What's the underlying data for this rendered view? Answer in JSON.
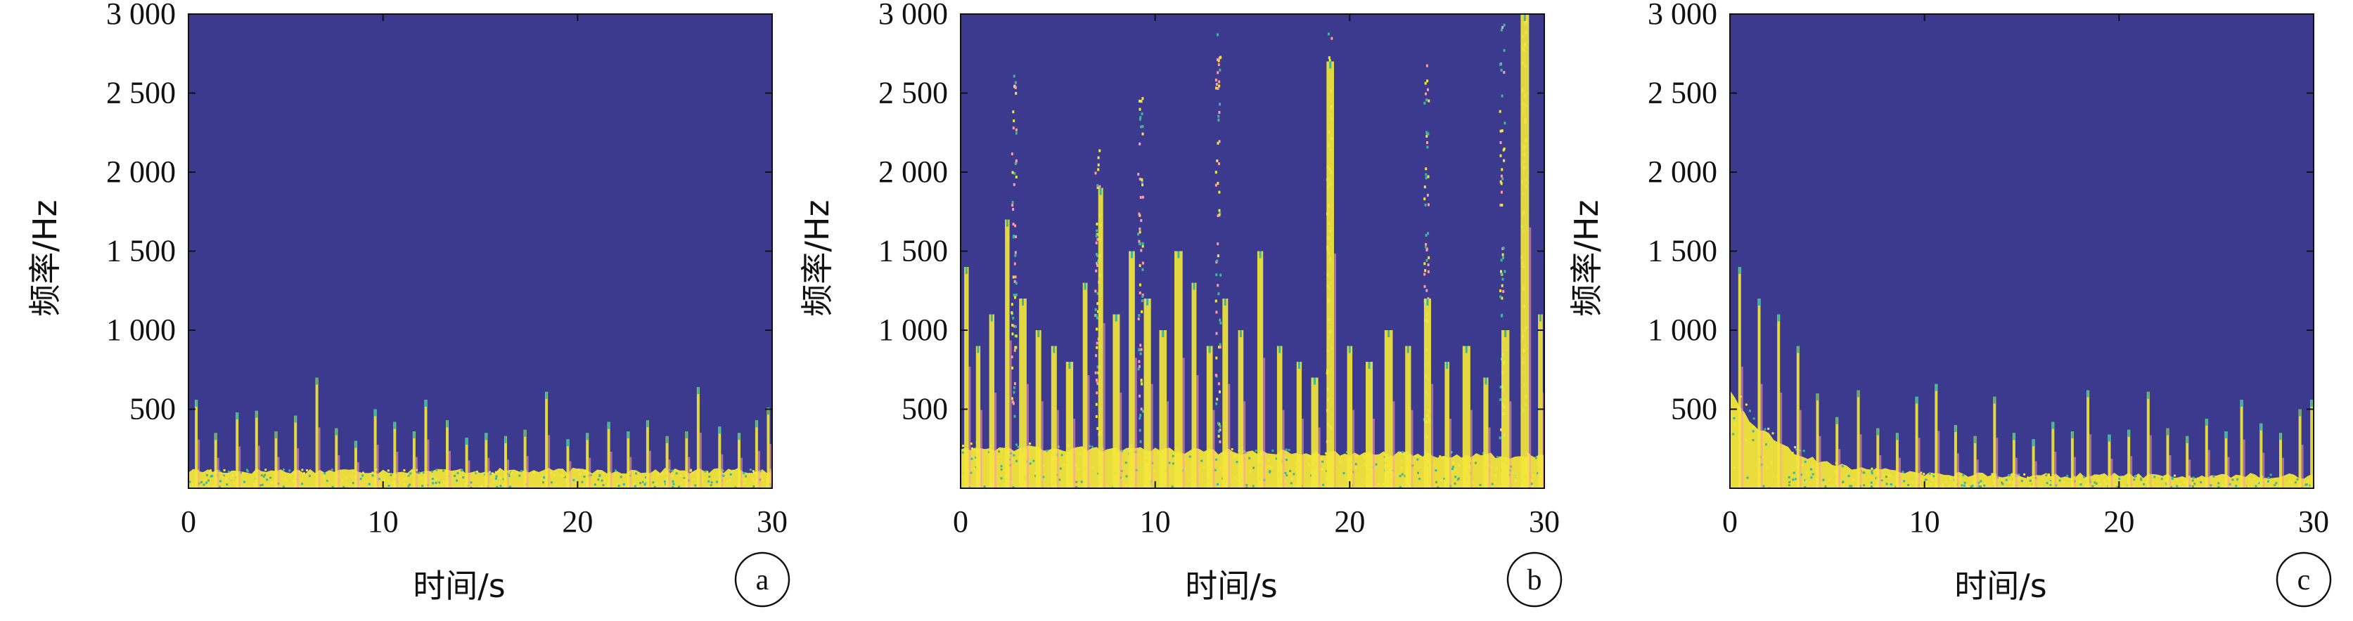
{
  "colors": {
    "background_power": "#3b3a8e",
    "high_power": "#f2e63a",
    "mid_power": "#3fb59a",
    "peak_power": "#ff9aa8"
  },
  "chart_data": [
    {
      "type": "heatmap",
      "panel_label": "a",
      "xlabel": "时间/s",
      "ylabel": "频率/Hz",
      "xlim": [
        0,
        30
      ],
      "ylim": [
        0,
        3000
      ],
      "x_ticks": [
        "0",
        "10",
        "20",
        "30"
      ],
      "y_ticks": [
        "500",
        "1 000",
        "1 500",
        "2 000",
        "2 500",
        "3 000"
      ],
      "band": {
        "base_top_hz": 110,
        "start_top_hz": 110,
        "decay_s": 0
      },
      "spikes": [
        {
          "t": 0.4,
          "f": 560
        },
        {
          "t": 1.4,
          "f": 350
        },
        {
          "t": 2.5,
          "f": 480
        },
        {
          "t": 3.5,
          "f": 490
        },
        {
          "t": 4.5,
          "f": 360
        },
        {
          "t": 5.5,
          "f": 460
        },
        {
          "t": 6.6,
          "f": 700
        },
        {
          "t": 7.6,
          "f": 380
        },
        {
          "t": 8.6,
          "f": 300
        },
        {
          "t": 9.6,
          "f": 500
        },
        {
          "t": 10.6,
          "f": 420
        },
        {
          "t": 11.6,
          "f": 360
        },
        {
          "t": 12.2,
          "f": 560
        },
        {
          "t": 13.3,
          "f": 430
        },
        {
          "t": 14.3,
          "f": 320
        },
        {
          "t": 15.3,
          "f": 350
        },
        {
          "t": 16.3,
          "f": 330
        },
        {
          "t": 17.3,
          "f": 370
        },
        {
          "t": 18.4,
          "f": 610
        },
        {
          "t": 19.5,
          "f": 310
        },
        {
          "t": 20.5,
          "f": 350
        },
        {
          "t": 21.6,
          "f": 420
        },
        {
          "t": 22.6,
          "f": 360
        },
        {
          "t": 23.6,
          "f": 430
        },
        {
          "t": 24.6,
          "f": 330
        },
        {
          "t": 25.6,
          "f": 360
        },
        {
          "t": 26.2,
          "f": 640
        },
        {
          "t": 27.3,
          "f": 390
        },
        {
          "t": 28.3,
          "f": 350
        },
        {
          "t": 29.2,
          "f": 430
        },
        {
          "t": 29.8,
          "f": 510
        }
      ],
      "scatter_streaks": []
    },
    {
      "type": "heatmap",
      "panel_label": "b",
      "xlabel": "时间/s",
      "ylabel": "频率/Hz",
      "xlim": [
        0,
        30
      ],
      "ylim": [
        0,
        3000
      ],
      "x_ticks": [
        "0",
        "10",
        "20",
        "30"
      ],
      "y_ticks": [
        "500",
        "1 000",
        "1 500",
        "2 000",
        "2 500",
        "3 000"
      ],
      "band": {
        "base_top_hz": 200,
        "start_top_hz": 300,
        "decay_s": 0
      },
      "spikes": [
        {
          "t": 0.3,
          "f": 1400
        },
        {
          "t": 0.9,
          "f": 900
        },
        {
          "t": 1.6,
          "f": 1100
        },
        {
          "t": 2.4,
          "f": 1700
        },
        {
          "t": 3.2,
          "f": 1200
        },
        {
          "t": 4.0,
          "f": 1000
        },
        {
          "t": 4.8,
          "f": 900
        },
        {
          "t": 5.6,
          "f": 800
        },
        {
          "t": 6.4,
          "f": 1300
        },
        {
          "t": 7.2,
          "f": 1900
        },
        {
          "t": 8.0,
          "f": 1100
        },
        {
          "t": 8.8,
          "f": 1500
        },
        {
          "t": 9.6,
          "f": 1200
        },
        {
          "t": 10.4,
          "f": 1000
        },
        {
          "t": 11.2,
          "f": 1500
        },
        {
          "t": 12.0,
          "f": 1300
        },
        {
          "t": 12.8,
          "f": 900
        },
        {
          "t": 13.6,
          "f": 1200
        },
        {
          "t": 14.4,
          "f": 1000
        },
        {
          "t": 15.4,
          "f": 1500
        },
        {
          "t": 16.4,
          "f": 900
        },
        {
          "t": 17.4,
          "f": 800
        },
        {
          "t": 18.2,
          "f": 700
        },
        {
          "t": 19.0,
          "f": 2700
        },
        {
          "t": 20.0,
          "f": 900
        },
        {
          "t": 21.0,
          "f": 800
        },
        {
          "t": 22.0,
          "f": 1000
        },
        {
          "t": 23.0,
          "f": 900
        },
        {
          "t": 24.0,
          "f": 1200
        },
        {
          "t": 25.0,
          "f": 800
        },
        {
          "t": 26.0,
          "f": 900
        },
        {
          "t": 27.0,
          "f": 700
        },
        {
          "t": 28.0,
          "f": 1000
        },
        {
          "t": 29.0,
          "f": 3000
        },
        {
          "t": 29.8,
          "f": 1100
        }
      ],
      "scatter_streaks": [
        {
          "t": 2.7,
          "f_min": 400,
          "f_max": 2650
        },
        {
          "t": 7.0,
          "f_min": 300,
          "f_max": 2200
        },
        {
          "t": 9.2,
          "f_min": 300,
          "f_max": 2500
        },
        {
          "t": 13.2,
          "f_min": 300,
          "f_max": 2900
        },
        {
          "t": 18.9,
          "f_min": 300,
          "f_max": 3000
        },
        {
          "t": 23.9,
          "f_min": 300,
          "f_max": 2700
        },
        {
          "t": 27.8,
          "f_min": 300,
          "f_max": 3000
        },
        {
          "t": 28.9,
          "f_min": 500,
          "f_max": 3000
        }
      ]
    },
    {
      "type": "heatmap",
      "panel_label": "c",
      "xlabel": "时间/s",
      "ylabel": "频率/Hz",
      "xlim": [
        0,
        30
      ],
      "ylim": [
        0,
        3000
      ],
      "x_ticks": [
        "0",
        "10",
        "20",
        "30"
      ],
      "y_ticks": [
        "500",
        "1 000",
        "1 500",
        "2 000",
        "2 500",
        "3 000"
      ],
      "band": {
        "base_top_hz": 80,
        "start_top_hz": 600,
        "decay_s": 6
      },
      "spikes": [
        {
          "t": 0.5,
          "f": 1400
        },
        {
          "t": 1.5,
          "f": 1200
        },
        {
          "t": 2.5,
          "f": 1100
        },
        {
          "t": 3.5,
          "f": 900
        },
        {
          "t": 4.5,
          "f": 600
        },
        {
          "t": 5.5,
          "f": 450
        },
        {
          "t": 6.6,
          "f": 620
        },
        {
          "t": 7.6,
          "f": 380
        },
        {
          "t": 8.6,
          "f": 350
        },
        {
          "t": 9.6,
          "f": 580
        },
        {
          "t": 10.6,
          "f": 660
        },
        {
          "t": 11.6,
          "f": 400
        },
        {
          "t": 12.6,
          "f": 330
        },
        {
          "t": 13.6,
          "f": 580
        },
        {
          "t": 14.6,
          "f": 350
        },
        {
          "t": 15.6,
          "f": 310
        },
        {
          "t": 16.6,
          "f": 420
        },
        {
          "t": 17.6,
          "f": 360
        },
        {
          "t": 18.4,
          "f": 620
        },
        {
          "t": 19.5,
          "f": 340
        },
        {
          "t": 20.5,
          "f": 370
        },
        {
          "t": 21.5,
          "f": 610
        },
        {
          "t": 22.5,
          "f": 380
        },
        {
          "t": 23.5,
          "f": 330
        },
        {
          "t": 24.5,
          "f": 440
        },
        {
          "t": 25.5,
          "f": 360
        },
        {
          "t": 26.3,
          "f": 560
        },
        {
          "t": 27.3,
          "f": 410
        },
        {
          "t": 28.3,
          "f": 350
        },
        {
          "t": 29.3,
          "f": 500
        },
        {
          "t": 29.9,
          "f": 560
        }
      ],
      "scatter_streaks": []
    }
  ]
}
